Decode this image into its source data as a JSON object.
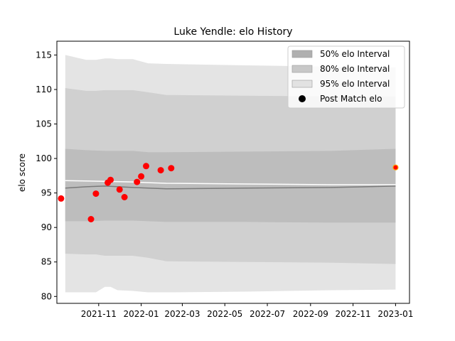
{
  "chart_data": {
    "type": "line",
    "title": "Luke Yendle: elo History",
    "xlabel": "",
    "ylabel": "elo score",
    "xlim": [
      "2021-09-02",
      "2023-01-21"
    ],
    "ylim": [
      79.0,
      117.0
    ],
    "x_ticks": [
      "2021-11",
      "2022-01",
      "2022-03",
      "2022-05",
      "2022-07",
      "2022-09",
      "2022-11",
      "2023-01"
    ],
    "y_ticks": [
      80,
      85,
      90,
      95,
      100,
      105,
      110,
      115
    ],
    "legend_position": "top-right",
    "legend": [
      {
        "label": "50% elo Interval",
        "color": "#b0b0b0"
      },
      {
        "label": "80% elo Interval",
        "color": "#c8c8c8"
      },
      {
        "label": "95% elo Interval",
        "color": "#e2e2e2"
      },
      {
        "label": "Post Match elo",
        "color": "#000000"
      }
    ],
    "bands": [
      {
        "name": "95% elo Interval",
        "color": "#e4e4e4",
        "x": [
          "2021-09-14",
          "2021-10-14",
          "2021-10-28",
          "2021-11-10",
          "2021-11-18",
          "2021-11-28",
          "2021-12-20",
          "2022-01-11",
          "2022-02-06",
          "2022-06-01",
          "2022-10-01",
          "2023-01-01"
        ],
        "upper": [
          115.0,
          114.3,
          114.3,
          114.5,
          114.5,
          114.4,
          114.4,
          113.8,
          113.7,
          113.5,
          113.3,
          113.2
        ],
        "lower": [
          80.6,
          80.6,
          80.6,
          81.4,
          81.4,
          80.9,
          80.8,
          80.6,
          80.6,
          80.7,
          80.9,
          81.0
        ]
      },
      {
        "name": "80% elo Interval",
        "color": "#d0d0d0",
        "x": [
          "2021-09-14",
          "2021-10-14",
          "2021-10-28",
          "2021-11-10",
          "2021-11-28",
          "2021-12-20",
          "2022-01-11",
          "2022-02-06",
          "2022-06-01",
          "2022-10-01",
          "2023-01-01"
        ],
        "upper": [
          110.2,
          109.8,
          109.8,
          109.9,
          109.9,
          109.9,
          109.6,
          109.2,
          109.1,
          109.0,
          109.0
        ],
        "lower": [
          86.2,
          86.1,
          86.1,
          85.9,
          85.9,
          85.9,
          85.6,
          85.1,
          85.0,
          84.9,
          84.7
        ]
      },
      {
        "name": "50% elo Interval",
        "color": "#bdbdbd",
        "x": [
          "2021-09-14",
          "2021-10-14",
          "2021-11-10",
          "2021-12-20",
          "2022-01-11",
          "2022-02-06",
          "2022-06-01",
          "2022-10-01",
          "2023-01-01"
        ],
        "upper": [
          101.4,
          101.2,
          101.1,
          101.1,
          100.9,
          100.9,
          101.0,
          101.1,
          101.4
        ],
        "lower": [
          90.9,
          90.9,
          91.0,
          91.0,
          90.9,
          90.8,
          90.8,
          90.7,
          90.7
        ]
      }
    ],
    "series": [
      {
        "name": "",
        "color": "#ffffff",
        "x": [
          "2021-09-14",
          "2021-12-20",
          "2022-01-11",
          "2022-02-06",
          "2022-06-01",
          "2022-10-01",
          "2023-01-01"
        ],
        "values": [
          96.8,
          96.6,
          96.5,
          96.4,
          96.3,
          96.2,
          96.2
        ]
      },
      {
        "name": "",
        "color": "#7a7a7a",
        "x": [
          "2021-09-14",
          "2021-10-14",
          "2021-11-10",
          "2021-12-20",
          "2022-01-11",
          "2022-02-06",
          "2022-06-01",
          "2022-10-01",
          "2023-01-01"
        ],
        "values": [
          95.7,
          95.9,
          96.0,
          95.8,
          95.7,
          95.6,
          95.7,
          95.8,
          96.0
        ]
      }
    ],
    "points": {
      "name": "Post Match elo",
      "color": "#ff0000",
      "x": [
        "2021-09-08",
        "2021-10-21",
        "2021-10-28",
        "2021-11-14",
        "2021-11-18",
        "2021-12-01",
        "2021-12-08",
        "2021-12-26",
        "2022-01-01",
        "2022-01-08",
        "2022-01-29",
        "2022-02-13"
      ],
      "values": [
        94.2,
        91.2,
        94.9,
        96.5,
        96.9,
        95.5,
        94.4,
        96.6,
        97.4,
        98.9,
        98.3,
        98.6
      ]
    },
    "final_point": {
      "x": "2023-01-01",
      "value": 98.7,
      "color": "#ff0000",
      "edge": "#ffa500"
    }
  }
}
